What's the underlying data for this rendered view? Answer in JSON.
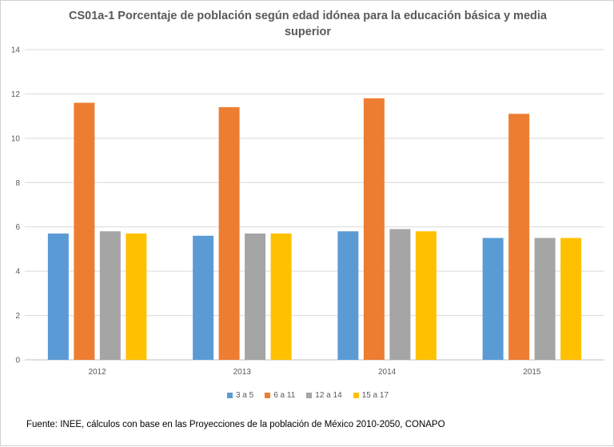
{
  "chart_data": {
    "type": "bar",
    "title": "CS01a-1 Porcentaje de población según edad idónea para la educación básica y media superior",
    "categories": [
      "2012",
      "2013",
      "2014",
      "2015"
    ],
    "series": [
      {
        "name": "3 a 5",
        "color": "#5B9BD5",
        "values": [
          5.7,
          5.6,
          5.8,
          5.5
        ]
      },
      {
        "name": "6 a 11",
        "color": "#ED7D31",
        "values": [
          11.6,
          11.4,
          11.8,
          11.1
        ]
      },
      {
        "name": "12 a 14",
        "color": "#A5A5A5",
        "values": [
          5.8,
          5.7,
          5.9,
          5.5
        ]
      },
      {
        "name": "15 a 17",
        "color": "#FFC000",
        "values": [
          5.7,
          5.7,
          5.8,
          5.5
        ]
      }
    ],
    "ylim": [
      0,
      14
    ],
    "yticks": [
      0,
      2,
      4,
      6,
      8,
      10,
      12,
      14
    ],
    "grid": true,
    "legend_position": "bottom"
  },
  "source_note": "Fuente: INEE, cálculos con base en las Proyecciones de la población de México 2010-2050,  CONAPO"
}
